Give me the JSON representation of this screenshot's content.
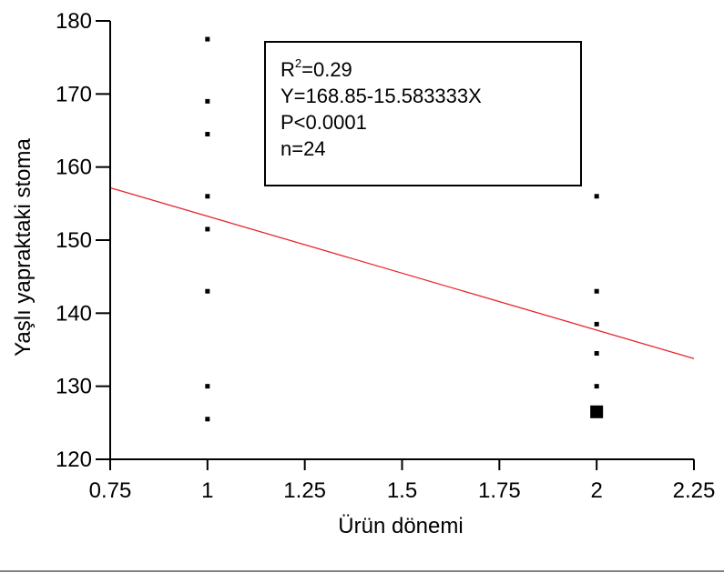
{
  "chart_data": {
    "type": "scatter",
    "xlabel": "Ürün dönemi",
    "ylabel": "Yaşlı yapraktaki stoma",
    "xlim": [
      0.75,
      2.25
    ],
    "ylim": [
      120,
      180
    ],
    "xticks": [
      0.75,
      1,
      1.25,
      1.5,
      1.75,
      2,
      2.25
    ],
    "xtick_labels": [
      "0.75",
      "1",
      "1.25",
      "1.5",
      "1.75",
      "2",
      "2.25"
    ],
    "yticks": [
      120,
      130,
      140,
      150,
      160,
      170,
      180
    ],
    "ytick_labels": [
      "120",
      "130",
      "140",
      "150",
      "160",
      "170",
      "180"
    ],
    "points": [
      {
        "x": 1,
        "y": 177.5
      },
      {
        "x": 1,
        "y": 169
      },
      {
        "x": 1,
        "y": 164.5
      },
      {
        "x": 1,
        "y": 156
      },
      {
        "x": 1,
        "y": 151.5
      },
      {
        "x": 1,
        "y": 143
      },
      {
        "x": 1,
        "y": 130
      },
      {
        "x": 1,
        "y": 125.5
      },
      {
        "x": 2,
        "y": 156
      },
      {
        "x": 2,
        "y": 143
      },
      {
        "x": 2,
        "y": 138.5
      },
      {
        "x": 2,
        "y": 134.5
      },
      {
        "x": 2,
        "y": 130
      },
      {
        "x": 2,
        "y": 126.5,
        "highlighted": true
      }
    ],
    "fit_line": {
      "intercept": 168.85,
      "slope": -15.583333,
      "color": "#e8262b"
    },
    "stats_box": {
      "r2_label": "R",
      "r2_sup": "2",
      "r2_value": "=0.29",
      "equation": "Y=168.85-15.583333X",
      "p_value": "P<0.0001",
      "n": "n=24"
    },
    "grid": false,
    "legend": "none"
  }
}
